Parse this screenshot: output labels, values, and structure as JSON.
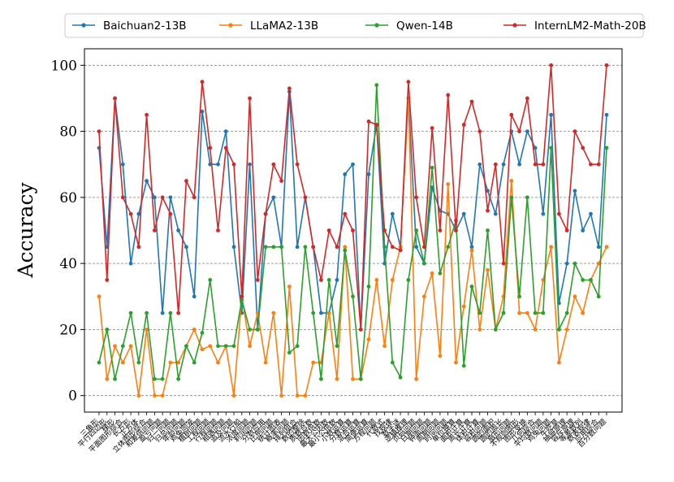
{
  "chart_data": {
    "type": "line",
    "ylabel": "Accuracy",
    "xlabel": "",
    "ylim": [
      -5,
      105
    ],
    "yticks": [
      0,
      20,
      40,
      60,
      80,
      100
    ],
    "grid": "horizontal-dashed",
    "legend_position": "top",
    "categories": [
      "三角形",
      "平行四边形",
      "梯形",
      "平面图形综合",
      "长方形",
      "正方体",
      "立体图形综合",
      "和差倍问题",
      "盈亏问题",
      "归一问题",
      "归总问题",
      "年龄问题",
      "鸡兔同笼",
      "植树问题",
      "工程问题",
      "行程问题",
      "相遇问题",
      "追及问题",
      "流水行船",
      "浓度问题",
      "利润问题",
      "分数应用",
      "比例问题",
      "统计图表",
      "概率问题",
      "排列组合",
      "数的整除",
      "质数合数",
      "因数倍数",
      "最大公因数",
      "最小公倍数",
      "小数运算",
      "分数运算",
      "混合运算",
      "简便运算",
      "方程问题",
      "代数式",
      "找规律",
      "数字谜",
      "逻辑推理",
      "页码问题",
      "日期问题",
      "钟面问题",
      "周期问题",
      "时间问题",
      "单位换算",
      "面积计算",
      "周长计算",
      "体积计算",
      "容积问题",
      "圆的面积",
      "圆的周长",
      "扇形问题",
      "不规则图形",
      "图形变换",
      "几何综合",
      "平均数问题",
      "鸡兔问题",
      "牛吃草",
      "抽屉原理",
      "容斥原理",
      "等差数列",
      "数表规律",
      "应用综合",
      "百分数问题"
    ],
    "series": [
      {
        "name": "Baichuan2-13B",
        "color": "#1f77b4",
        "values": [
          75,
          45,
          90,
          70,
          40,
          55,
          65,
          60,
          25,
          60,
          50,
          45,
          30,
          86,
          70,
          70,
          80,
          45,
          25,
          70,
          20,
          55,
          60,
          45,
          92,
          45,
          60,
          45,
          25,
          25,
          35,
          67,
          70,
          20,
          67,
          82,
          40,
          55,
          45,
          90,
          45,
          40,
          63,
          56,
          55,
          50,
          55,
          45,
          70,
          62,
          55,
          70,
          80,
          70,
          80,
          75,
          55,
          85,
          28,
          40,
          62,
          50,
          55,
          45,
          85
        ]
      },
      {
        "name": "LLaMA2-13B",
        "color": "#ff7f0e",
        "values": [
          30,
          5,
          15,
          10,
          15,
          0,
          20,
          0,
          0,
          10,
          10,
          15,
          20,
          14,
          15,
          10,
          15,
          0,
          30,
          15,
          25,
          10,
          25,
          0,
          33,
          0,
          0,
          10,
          10,
          25,
          5,
          45,
          5,
          5,
          17,
          35,
          15,
          35,
          45,
          90,
          5,
          30,
          37,
          12,
          64,
          10,
          27,
          44,
          20,
          38,
          20,
          30,
          65,
          25,
          25,
          20,
          35,
          45,
          10,
          20,
          30,
          25,
          35,
          40,
          45
        ]
      },
      {
        "name": "Qwen-14B",
        "color": "#2ca02c",
        "values": [
          10,
          20,
          5,
          15,
          25,
          10,
          25,
          5,
          5,
          25,
          5,
          15,
          10,
          19,
          35,
          15,
          15,
          15,
          29,
          20,
          20,
          45,
          45,
          45,
          13,
          15,
          45,
          25,
          5,
          35,
          15,
          44,
          30,
          5,
          33,
          94,
          45,
          10,
          5.5,
          35,
          50,
          40,
          69,
          37,
          45,
          53,
          9,
          33,
          25,
          50,
          20,
          25,
          60,
          30,
          60,
          25,
          25,
          75,
          20,
          25,
          40,
          35,
          35,
          30,
          75
        ]
      },
      {
        "name": "InternLM2-Math-20B",
        "color": "#d62728",
        "values": [
          80,
          35,
          90,
          60,
          55,
          45,
          85,
          50,
          60,
          55,
          25,
          65,
          60,
          95,
          75,
          50,
          75,
          70,
          30,
          90,
          35,
          55,
          70,
          65,
          93,
          70,
          60,
          45,
          35,
          50,
          45,
          55,
          50,
          20,
          83,
          82,
          50,
          45,
          44,
          95,
          60,
          45,
          81,
          50,
          91,
          50,
          82,
          89,
          80,
          56,
          70,
          40,
          85,
          80,
          90,
          70,
          70,
          100,
          55,
          50,
          80,
          75,
          70,
          70,
          100
        ]
      }
    ],
    "legend": [
      "Baichuan2-13B",
      "LLaMA2-13B",
      "Qwen-14B",
      "InternLM2-Math-20B"
    ]
  }
}
